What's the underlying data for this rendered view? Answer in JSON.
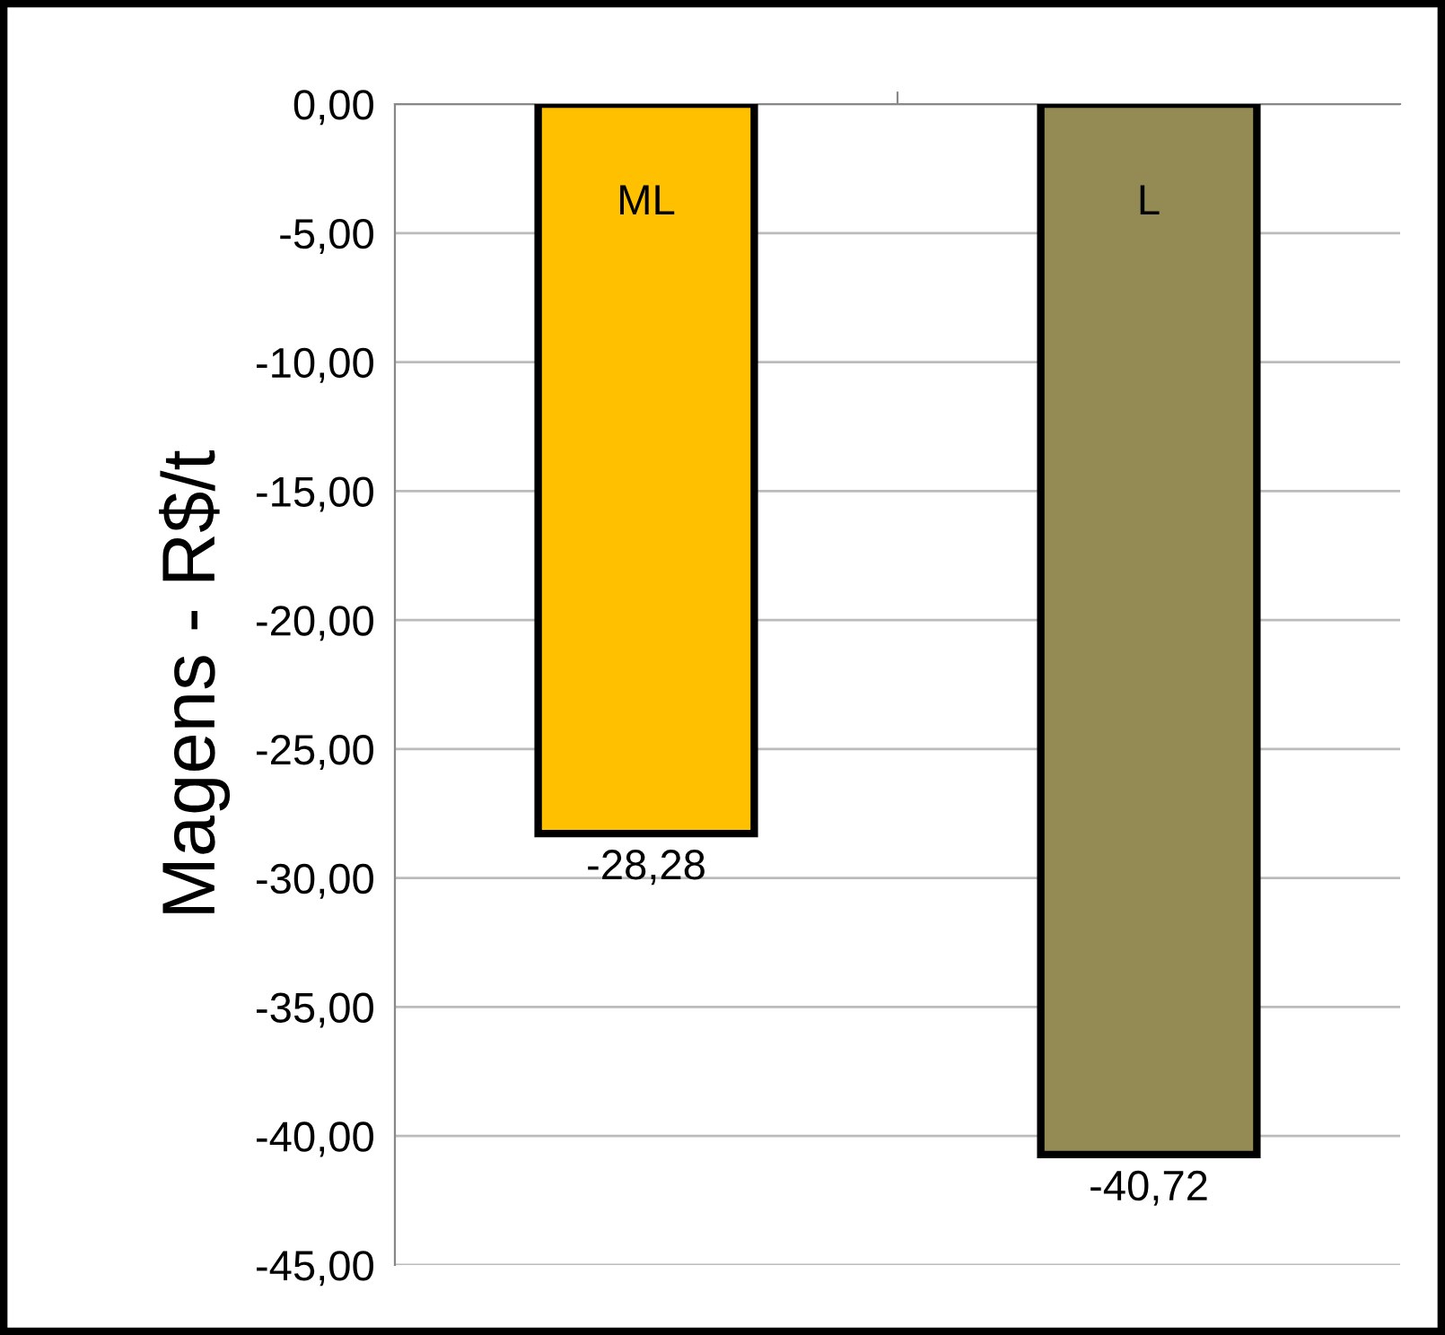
{
  "chart_data": {
    "type": "bar",
    "ylabel": "Magens - R$/t",
    "categories": [
      "ML",
      "L"
    ],
    "values": [
      -28.28,
      -40.72
    ],
    "colors": [
      "#ffc000",
      "#948a54"
    ],
    "value_labels": [
      "-28,28",
      "-40,72"
    ],
    "ylim": [
      -45,
      0
    ],
    "yticks": [
      {
        "value": 0,
        "label": "0,00"
      },
      {
        "value": -5,
        "label": "-5,00"
      },
      {
        "value": -10,
        "label": "-10,00"
      },
      {
        "value": -15,
        "label": "-15,00"
      },
      {
        "value": -20,
        "label": "-20,00"
      },
      {
        "value": -25,
        "label": "-25,00"
      },
      {
        "value": -30,
        "label": "-30,00"
      },
      {
        "value": -35,
        "label": "-35,00"
      },
      {
        "value": -40,
        "label": "-40,00"
      },
      {
        "value": -45,
        "label": "-45,00"
      }
    ],
    "grid": "y"
  }
}
